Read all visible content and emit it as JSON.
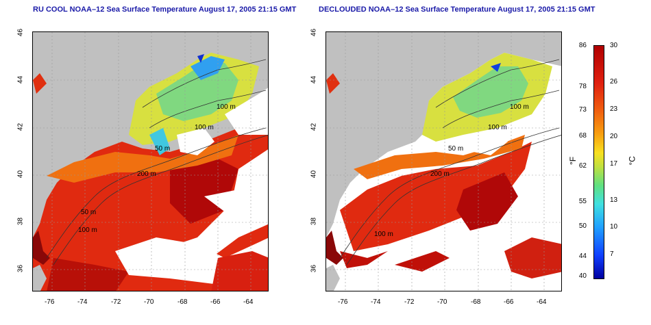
{
  "left_panel": {
    "title": "RU COOL NOAA–12 Sea Surface Temperature August 17, 2005 21:15 GMT"
  },
  "right_panel": {
    "title": "DECLOUDED NOAA–12 Sea Surface Temperature August 17, 2005 21:15 GMT"
  },
  "axes": {
    "x_ticks": [
      "-76",
      "-74",
      "-72",
      "-70",
      "-68",
      "-66",
      "-64"
    ],
    "y_ticks": [
      "46",
      "44",
      "42",
      "40",
      "38",
      "36"
    ]
  },
  "contour_labels": {
    "left": [
      "100 m",
      "100 m",
      "50 m",
      "200 m",
      "50 m",
      "100 m"
    ],
    "right": [
      "100 m",
      "100 m",
      "50 m",
      "200 m",
      "100 m"
    ]
  },
  "colorbar": {
    "fahrenheit_label": "°F",
    "celsius_label": "°C",
    "f_ticks": [
      "86",
      "78",
      "73",
      "68",
      "62",
      "55",
      "50",
      "44",
      "40"
    ],
    "c_ticks": [
      "30",
      "26",
      "23",
      "20",
      "17",
      "13",
      "10",
      "7"
    ]
  },
  "colors": {
    "title": "#1a1aa8",
    "land": "#c0c0c0",
    "cloud": "#ffffff",
    "warm": "#e02010",
    "cool": "#40c0ff"
  }
}
